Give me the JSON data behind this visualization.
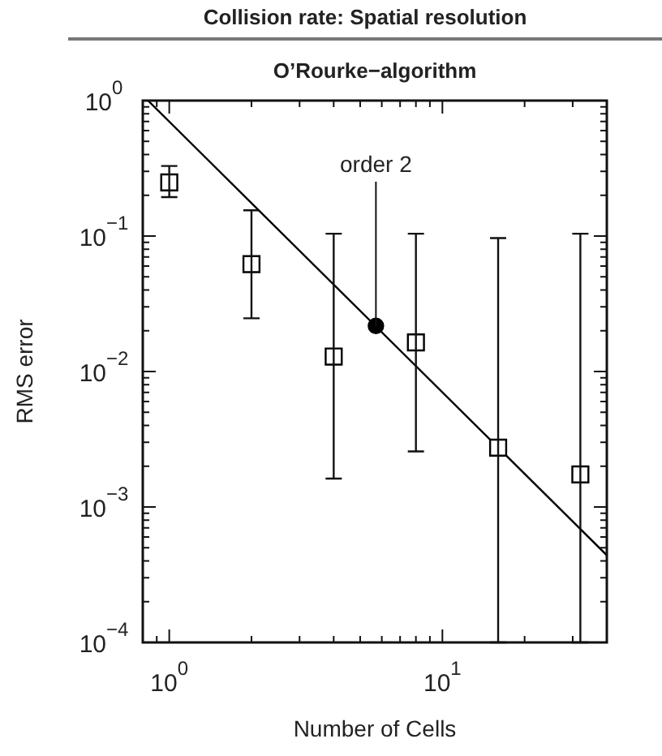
{
  "chart_data": {
    "type": "scatter",
    "title": "Collision rate: Spatial resolution",
    "subtitle": "O’Rourke−algorithm",
    "xlabel": "Number of Cells",
    "ylabel": "RMS error",
    "log": "xy",
    "grid": false,
    "legend": false,
    "xlim": [
      0.8,
      40
    ],
    "ylim": [
      0.0001,
      1
    ],
    "xticks": [
      {
        "value": 0.8,
        "label": null
      },
      {
        "value": 0.9,
        "label": null
      },
      {
        "value": 1,
        "label": "10$^{0}$"
      },
      {
        "value": 2,
        "label": null
      },
      {
        "value": 3,
        "label": null
      },
      {
        "value": 4,
        "label": null
      },
      {
        "value": 5,
        "label": null
      },
      {
        "value": 6,
        "label": null
      },
      {
        "value": 7,
        "label": null
      },
      {
        "value": 8,
        "label": null
      },
      {
        "value": 9,
        "label": null
      },
      {
        "value": 10,
        "label": "10$^{1}$"
      },
      {
        "value": 20,
        "label": null
      },
      {
        "value": 30,
        "label": null
      }
    ],
    "yticks": [
      {
        "value": 0.0001,
        "label": "10$^{−4}$"
      },
      {
        "value": 0.0002,
        "label": null
      },
      {
        "value": 0.0003,
        "label": null
      },
      {
        "value": 0.0004,
        "label": null
      },
      {
        "value": 0.0005,
        "label": null
      },
      {
        "value": 0.0006,
        "label": null
      },
      {
        "value": 0.0007,
        "label": null
      },
      {
        "value": 0.0008,
        "label": null
      },
      {
        "value": 0.0009,
        "label": null
      },
      {
        "value": 0.001,
        "label": "10$^{−3}$"
      },
      {
        "value": 0.002,
        "label": null
      },
      {
        "value": 0.003,
        "label": null
      },
      {
        "value": 0.004,
        "label": null
      },
      {
        "value": 0.005,
        "label": null
      },
      {
        "value": 0.006,
        "label": null
      },
      {
        "value": 0.007,
        "label": null
      },
      {
        "value": 0.008,
        "label": null
      },
      {
        "value": 0.009,
        "label": null
      },
      {
        "value": 0.01,
        "label": "10$^{−2}$"
      },
      {
        "value": 0.02,
        "label": null
      },
      {
        "value": 0.03,
        "label": null
      },
      {
        "value": 0.04,
        "label": null
      },
      {
        "value": 0.05,
        "label": null
      },
      {
        "value": 0.06,
        "label": null
      },
      {
        "value": 0.07,
        "label": null
      },
      {
        "value": 0.08,
        "label": null
      },
      {
        "value": 0.09,
        "label": null
      },
      {
        "value": 0.1,
        "label": "10$^{−1}$"
      },
      {
        "value": 0.2,
        "label": null
      },
      {
        "value": 0.3,
        "label": null
      },
      {
        "value": 0.4,
        "label": null
      },
      {
        "value": 0.5,
        "label": null
      },
      {
        "value": 0.6,
        "label": null
      },
      {
        "value": 0.7,
        "label": null
      },
      {
        "value": 0.8,
        "label": null
      },
      {
        "value": 0.9,
        "label": null
      },
      {
        "value": 1,
        "label": "10$^{0}$"
      }
    ],
    "series": [
      {
        "marker": "square",
        "color": "#000000",
        "x": [
          1,
          2,
          4,
          8,
          16,
          32
        ],
        "values": [
          0.249,
          0.062,
          0.0129,
          0.0164,
          0.00274,
          0.00174
        ],
        "errors": [
          [
            0.194,
            0.329
          ],
          [
            0.0247,
            0.155
          ],
          [
            0.00162,
            0.104
          ],
          [
            0.00257,
            0.104
          ],
          [
            0.0001,
            0.0966
          ],
          [
            0.0001,
            0.104
          ]
        ]
      },
      {
        "type": "line",
        "marker": "none",
        "color": "#000000",
        "x": [
          0.836,
          40
        ],
        "values": [
          1,
          0.00044
        ]
      },
      {
        "marker": "circle",
        "color": "#000000",
        "x": [
          5.71
        ],
        "values": [
          0.0217
        ]
      }
    ],
    "annotations": [
      {
        "text": "order 2",
        "x": 5.71,
        "y": 0.0217
      }
    ]
  }
}
